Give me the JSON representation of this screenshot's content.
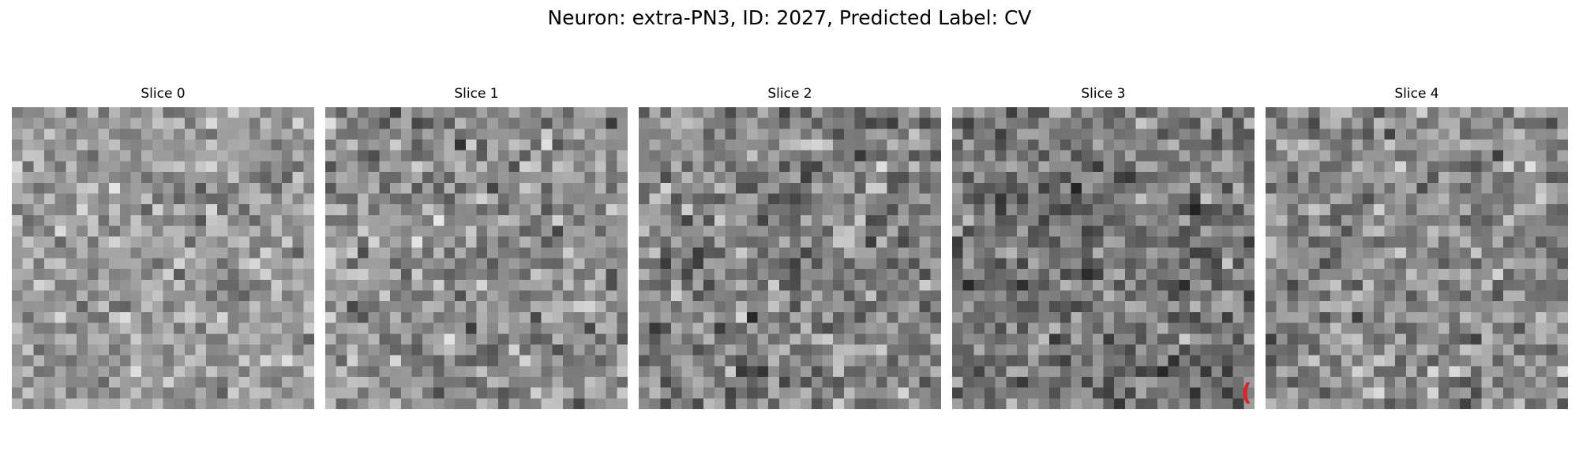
{
  "figure": {
    "title": "Neuron: extra-PN3, ID: 2027, Predicted Label: CV"
  },
  "slices": [
    {
      "title": "Slice 0",
      "seed": 11,
      "mean": 0.6,
      "spread": 0.34
    },
    {
      "title": "Slice 1",
      "seed": 23,
      "mean": 0.56,
      "spread": 0.38
    },
    {
      "title": "Slice 2",
      "seed": 37,
      "mean": 0.52,
      "spread": 0.4
    },
    {
      "title": "Slice 3",
      "seed": 41,
      "mean": 0.47,
      "spread": 0.38
    },
    {
      "title": "Slice 4",
      "seed": 59,
      "mean": 0.55,
      "spread": 0.36
    }
  ],
  "grid_cells": 28,
  "colors": {
    "marker": "#d62728"
  }
}
